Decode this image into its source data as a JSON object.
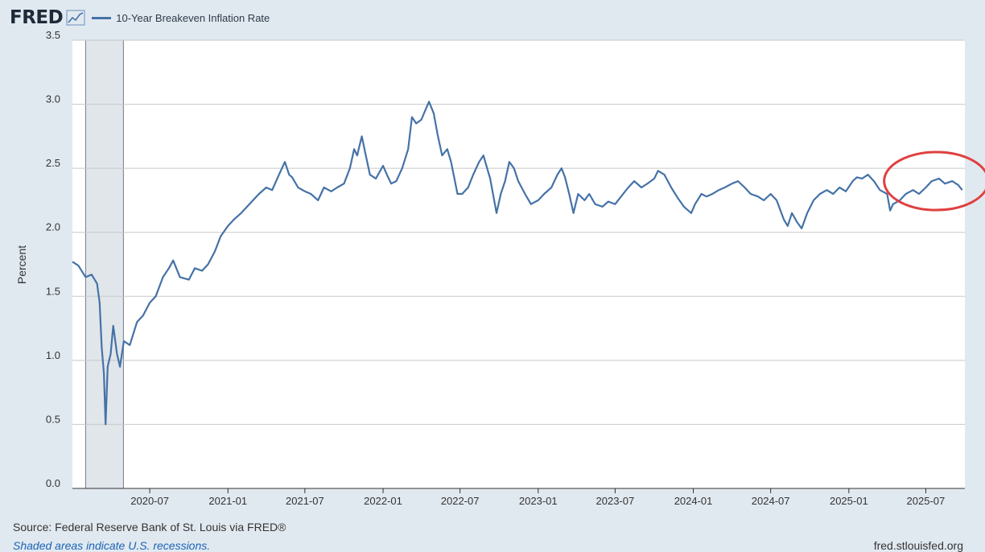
{
  "header": {
    "logo_text": "FRED",
    "logo_icon": "line-graph-icon",
    "series_legend": "10-Year Breakeven Inflation Rate",
    "series_color": "#4572a7"
  },
  "footer": {
    "source": "Source: Federal Reserve Bank of St. Louis via FRED®",
    "recession_note": "Shaded areas indicate U.S. recessions.",
    "site": "fred.stlouisfed.org"
  },
  "annotation": {
    "type": "ellipse",
    "color": "#e04040",
    "highlights": "2025-04 to 2025-09"
  },
  "chart_data": {
    "type": "line",
    "title": "10-Year Breakeven Inflation Rate",
    "ylabel": "Percent",
    "xlabel": "",
    "ylim": [
      0,
      3.5
    ],
    "xlim": [
      "2020-01-01",
      "2025-10-01"
    ],
    "y_ticks": [
      "0.0",
      "0.5",
      "1.0",
      "1.5",
      "2.0",
      "2.5",
      "3.0",
      "3.5"
    ],
    "x_ticks": [
      "2020-07",
      "2021-01",
      "2021-07",
      "2022-01",
      "2022-07",
      "2023-01",
      "2023-07",
      "2024-01",
      "2024-07",
      "2025-01",
      "2025-07"
    ],
    "grid": true,
    "legend": "top-left",
    "recessions": [
      {
        "start": "2020-02-01",
        "end": "2020-04-30"
      }
    ],
    "series": [
      {
        "name": "10-Year Breakeven Inflation Rate",
        "color": "#4572a7",
        "points": [
          [
            "2020-01-01",
            1.77
          ],
          [
            "2020-01-15",
            1.74
          ],
          [
            "2020-02-01",
            1.65
          ],
          [
            "2020-02-15",
            1.67
          ],
          [
            "2020-02-28",
            1.6
          ],
          [
            "2020-03-05",
            1.45
          ],
          [
            "2020-03-10",
            1.1
          ],
          [
            "2020-03-15",
            0.9
          ],
          [
            "2020-03-19",
            0.5
          ],
          [
            "2020-03-24",
            0.95
          ],
          [
            "2020-03-31",
            1.05
          ],
          [
            "2020-04-06",
            1.27
          ],
          [
            "2020-04-15",
            1.05
          ],
          [
            "2020-04-22",
            0.95
          ],
          [
            "2020-05-01",
            1.15
          ],
          [
            "2020-05-15",
            1.12
          ],
          [
            "2020-06-01",
            1.3
          ],
          [
            "2020-06-15",
            1.35
          ],
          [
            "2020-07-01",
            1.45
          ],
          [
            "2020-07-15",
            1.5
          ],
          [
            "2020-08-01",
            1.65
          ],
          [
            "2020-08-15",
            1.72
          ],
          [
            "2020-08-25",
            1.78
          ],
          [
            "2020-09-10",
            1.65
          ],
          [
            "2020-10-01",
            1.63
          ],
          [
            "2020-10-15",
            1.72
          ],
          [
            "2020-11-01",
            1.7
          ],
          [
            "2020-11-15",
            1.75
          ],
          [
            "2020-12-01",
            1.85
          ],
          [
            "2020-12-15",
            1.97
          ],
          [
            "2021-01-01",
            2.05
          ],
          [
            "2021-01-15",
            2.1
          ],
          [
            "2021-02-01",
            2.15
          ],
          [
            "2021-02-15",
            2.2
          ],
          [
            "2021-03-01",
            2.25
          ],
          [
            "2021-03-15",
            2.3
          ],
          [
            "2021-04-01",
            2.35
          ],
          [
            "2021-04-15",
            2.33
          ],
          [
            "2021-05-01",
            2.45
          ],
          [
            "2021-05-15",
            2.55
          ],
          [
            "2021-05-25",
            2.45
          ],
          [
            "2021-06-01",
            2.43
          ],
          [
            "2021-06-15",
            2.35
          ],
          [
            "2021-07-01",
            2.32
          ],
          [
            "2021-07-15",
            2.3
          ],
          [
            "2021-08-01",
            2.25
          ],
          [
            "2021-08-15",
            2.35
          ],
          [
            "2021-09-01",
            2.32
          ],
          [
            "2021-09-15",
            2.35
          ],
          [
            "2021-10-01",
            2.38
          ],
          [
            "2021-10-15",
            2.5
          ],
          [
            "2021-10-25",
            2.65
          ],
          [
            "2021-11-01",
            2.6
          ],
          [
            "2021-11-12",
            2.75
          ],
          [
            "2021-11-20",
            2.62
          ],
          [
            "2021-12-01",
            2.45
          ],
          [
            "2021-12-15",
            2.42
          ],
          [
            "2022-01-01",
            2.52
          ],
          [
            "2022-01-10",
            2.45
          ],
          [
            "2022-01-20",
            2.38
          ],
          [
            "2022-02-01",
            2.4
          ],
          [
            "2022-02-15",
            2.5
          ],
          [
            "2022-03-01",
            2.65
          ],
          [
            "2022-03-10",
            2.9
          ],
          [
            "2022-03-20",
            2.85
          ],
          [
            "2022-04-01",
            2.88
          ],
          [
            "2022-04-10",
            2.95
          ],
          [
            "2022-04-19",
            3.02
          ],
          [
            "2022-04-30",
            2.93
          ],
          [
            "2022-05-10",
            2.75
          ],
          [
            "2022-05-20",
            2.6
          ],
          [
            "2022-06-01",
            2.65
          ],
          [
            "2022-06-10",
            2.55
          ],
          [
            "2022-06-25",
            2.3
          ],
          [
            "2022-07-06",
            2.3
          ],
          [
            "2022-07-20",
            2.35
          ],
          [
            "2022-08-01",
            2.45
          ],
          [
            "2022-08-15",
            2.55
          ],
          [
            "2022-08-25",
            2.6
          ],
          [
            "2022-09-10",
            2.42
          ],
          [
            "2022-09-25",
            2.15
          ],
          [
            "2022-10-05",
            2.3
          ],
          [
            "2022-10-15",
            2.4
          ],
          [
            "2022-10-25",
            2.55
          ],
          [
            "2022-11-05",
            2.5
          ],
          [
            "2022-11-15",
            2.4
          ],
          [
            "2022-12-01",
            2.3
          ],
          [
            "2022-12-15",
            2.22
          ],
          [
            "2023-01-01",
            2.25
          ],
          [
            "2023-01-15",
            2.3
          ],
          [
            "2023-02-01",
            2.35
          ],
          [
            "2023-02-15",
            2.45
          ],
          [
            "2023-02-25",
            2.5
          ],
          [
            "2023-03-05",
            2.43
          ],
          [
            "2023-03-15",
            2.3
          ],
          [
            "2023-03-25",
            2.15
          ],
          [
            "2023-04-05",
            2.3
          ],
          [
            "2023-04-20",
            2.25
          ],
          [
            "2023-05-01",
            2.3
          ],
          [
            "2023-05-15",
            2.22
          ],
          [
            "2023-06-01",
            2.2
          ],
          [
            "2023-06-15",
            2.24
          ],
          [
            "2023-07-01",
            2.22
          ],
          [
            "2023-07-15",
            2.28
          ],
          [
            "2023-08-01",
            2.35
          ],
          [
            "2023-08-15",
            2.4
          ],
          [
            "2023-09-01",
            2.35
          ],
          [
            "2023-09-15",
            2.38
          ],
          [
            "2023-10-01",
            2.42
          ],
          [
            "2023-10-10",
            2.48
          ],
          [
            "2023-10-25",
            2.45
          ],
          [
            "2023-11-10",
            2.35
          ],
          [
            "2023-11-25",
            2.27
          ],
          [
            "2023-12-10",
            2.2
          ],
          [
            "2023-12-27",
            2.15
          ],
          [
            "2024-01-05",
            2.22
          ],
          [
            "2024-01-20",
            2.3
          ],
          [
            "2024-02-01",
            2.28
          ],
          [
            "2024-02-15",
            2.3
          ],
          [
            "2024-03-01",
            2.33
          ],
          [
            "2024-03-15",
            2.35
          ],
          [
            "2024-04-01",
            2.38
          ],
          [
            "2024-04-15",
            2.4
          ],
          [
            "2024-05-01",
            2.35
          ],
          [
            "2024-05-15",
            2.3
          ],
          [
            "2024-06-01",
            2.28
          ],
          [
            "2024-06-15",
            2.25
          ],
          [
            "2024-07-01",
            2.3
          ],
          [
            "2024-07-15",
            2.25
          ],
          [
            "2024-08-01",
            2.1
          ],
          [
            "2024-08-10",
            2.05
          ],
          [
            "2024-08-20",
            2.15
          ],
          [
            "2024-09-01",
            2.08
          ],
          [
            "2024-09-12",
            2.03
          ],
          [
            "2024-09-25",
            2.15
          ],
          [
            "2024-10-10",
            2.25
          ],
          [
            "2024-10-25",
            2.3
          ],
          [
            "2024-11-10",
            2.33
          ],
          [
            "2024-11-25",
            2.3
          ],
          [
            "2024-12-10",
            2.35
          ],
          [
            "2024-12-25",
            2.32
          ],
          [
            "2025-01-10",
            2.4
          ],
          [
            "2025-01-20",
            2.43
          ],
          [
            "2025-02-01",
            2.42
          ],
          [
            "2025-02-15",
            2.45
          ],
          [
            "2025-03-01",
            2.4
          ],
          [
            "2025-03-15",
            2.33
          ],
          [
            "2025-04-01",
            2.3
          ],
          [
            "2025-04-08",
            2.17
          ],
          [
            "2025-04-15",
            2.22
          ],
          [
            "2025-05-01",
            2.25
          ],
          [
            "2025-05-15",
            2.3
          ],
          [
            "2025-06-01",
            2.33
          ],
          [
            "2025-06-15",
            2.3
          ],
          [
            "2025-07-01",
            2.35
          ],
          [
            "2025-07-15",
            2.4
          ],
          [
            "2025-08-01",
            2.42
          ],
          [
            "2025-08-15",
            2.38
          ],
          [
            "2025-09-01",
            2.4
          ],
          [
            "2025-09-15",
            2.37
          ],
          [
            "2025-09-25",
            2.33
          ]
        ]
      }
    ]
  }
}
